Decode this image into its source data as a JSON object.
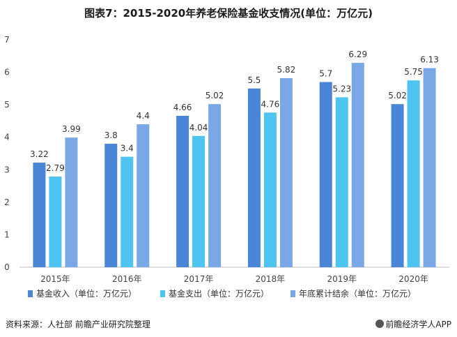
{
  "chart_data": {
    "type": "bar",
    "title": "图表7：2015-2020年养老保险基金收支情况(单位：万亿元)",
    "categories": [
      "2015年",
      "2016年",
      "2017年",
      "2018年",
      "2019年",
      "2020年"
    ],
    "series": [
      {
        "name": "基金收入（单位：万亿元）",
        "values": [
          3.22,
          3.8,
          4.66,
          5.5,
          5.7,
          5.02
        ],
        "color": "#4a86d8"
      },
      {
        "name": "基金支出（单位：万亿元）",
        "values": [
          2.79,
          3.4,
          4.04,
          4.76,
          5.23,
          5.75
        ],
        "color": "#4ec4f0"
      },
      {
        "name": "年底累计结余（单位：万亿元）",
        "values": [
          3.99,
          4.4,
          5.02,
          5.82,
          6.29,
          6.13
        ],
        "color": "#7aa8e6"
      }
    ],
    "ylim": [
      0,
      7
    ],
    "yticks": [
      0,
      1,
      2,
      3,
      4,
      5,
      6,
      7
    ],
    "grid": false,
    "legend_position": "bottom"
  },
  "source": "资料来源：人社部 前瞻产业研究院整理",
  "brand": "前瞻经济学人APP"
}
